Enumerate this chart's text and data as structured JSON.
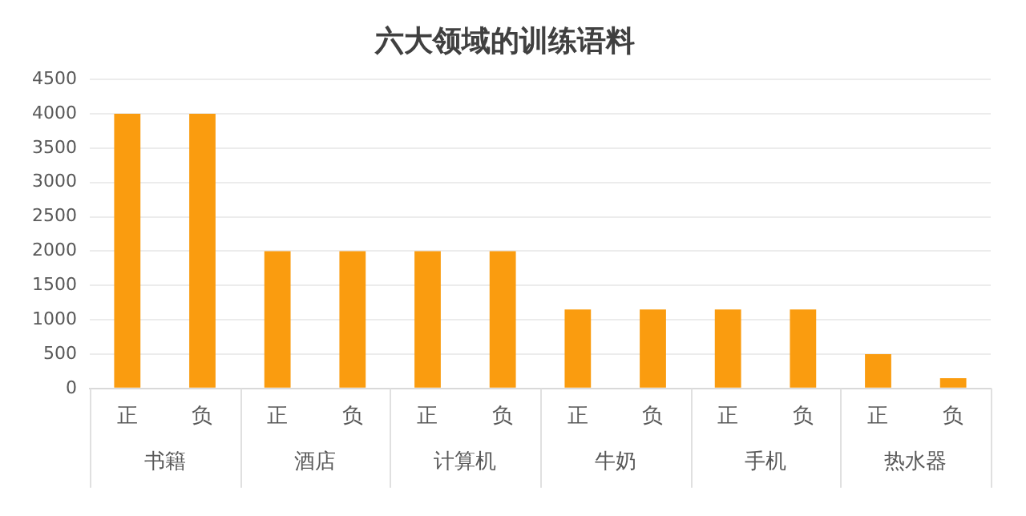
{
  "chart_data": {
    "type": "bar",
    "title": "六大领域的训练语料",
    "categories": [
      "正",
      "负",
      "正",
      "负",
      "正",
      "负",
      "正",
      "负",
      "正",
      "负",
      "正",
      "负"
    ],
    "values": [
      4000,
      4000,
      2000,
      2000,
      2000,
      2000,
      1150,
      1150,
      1150,
      1150,
      500,
      150
    ],
    "color": "#fa9c0f",
    "ylim": [
      0,
      4500
    ],
    "yticks": [
      0,
      500,
      1000,
      1500,
      2000,
      2500,
      3000,
      3500,
      4000,
      4500
    ],
    "grid": "y",
    "annotations": [
      "书籍",
      "酒店",
      "计算机",
      "牛奶",
      "手机",
      "热水器"
    ]
  }
}
